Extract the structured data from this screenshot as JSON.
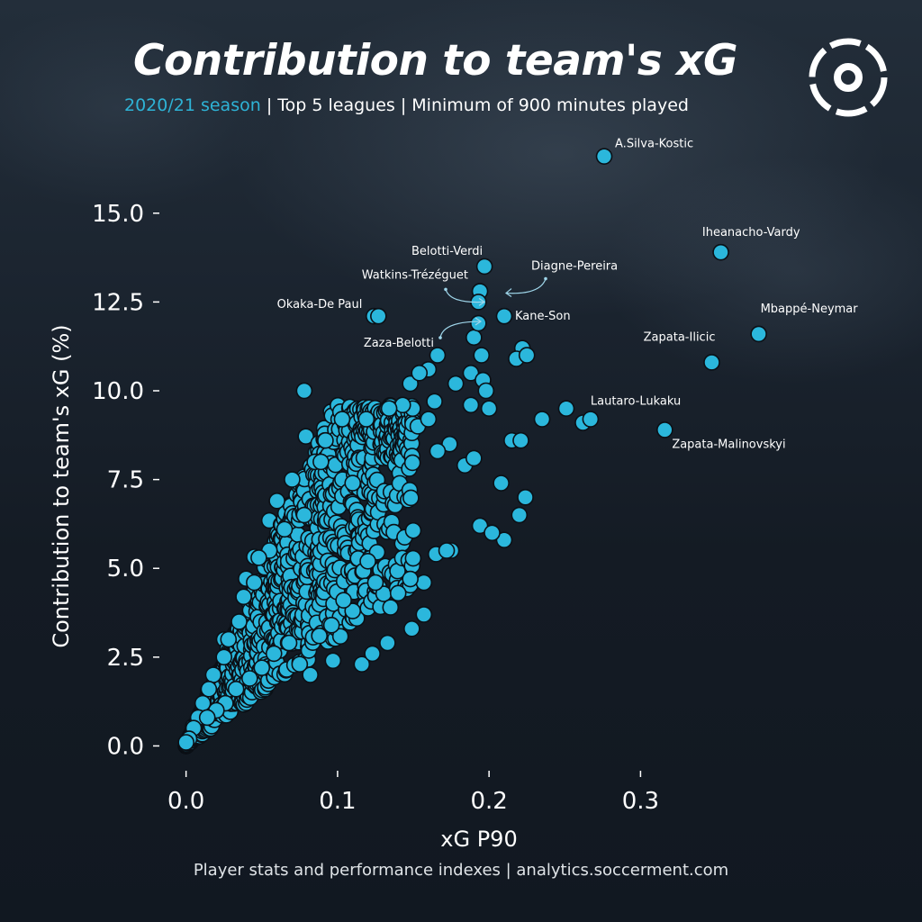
{
  "header": {
    "title": "Contribution to team's xG",
    "subtitle_season": "2020/21 season",
    "subtitle_rest": " | Top 5 leagues | Minimum of 900 minutes played"
  },
  "footer": {
    "text": "Player stats and performance indexes  |  analytics.soccerment.com"
  },
  "colors": {
    "point_fill": "#2bb7dc",
    "point_stroke": "#0b1016",
    "accent": "#2eb3d6",
    "background": "#141c26"
  },
  "chart_data": {
    "type": "scatter",
    "xlabel": "xG P90",
    "ylabel": "Contribution to team's xG (%)",
    "xlim": [
      -0.02,
      0.38
    ],
    "ylim": [
      -0.8,
      17.2
    ],
    "xticks": [
      0.0,
      0.1,
      0.2,
      0.3
    ],
    "xtick_labels": [
      "0.0",
      "0.1",
      "0.2",
      "0.3"
    ],
    "yticks": [
      0.0,
      2.5,
      5.0,
      7.5,
      10.0,
      12.5,
      15.0
    ],
    "ytick_labels": [
      "0.0",
      "2.5",
      "5.0",
      "7.5",
      "10.0",
      "12.5",
      "15.0"
    ],
    "grid": false,
    "labeled_points": [
      {
        "label": "A.Silva-Kostic",
        "x": 0.276,
        "y": 16.6
      },
      {
        "label": "Iheanacho-Vardy",
        "x": 0.353,
        "y": 13.9
      },
      {
        "label": "Belotti-Verdi",
        "x": 0.197,
        "y": 13.5
      },
      {
        "label": "Diagne-Pereira",
        "x": 0.194,
        "y": 12.8
      },
      {
        "label": "Watkins-Trézéguet",
        "x": 0.193,
        "y": 12.5
      },
      {
        "label": "Okaka-De Paul",
        "x": 0.127,
        "y": 12.1
      },
      {
        "label": "Kane-Son",
        "x": 0.21,
        "y": 12.1
      },
      {
        "label": "Zaza-Belotti",
        "x": 0.193,
        "y": 11.9
      },
      {
        "label": "Mbappé-Neymar",
        "x": 0.378,
        "y": 11.6
      },
      {
        "label": "Zapata-Ilicic",
        "x": 0.347,
        "y": 10.8
      },
      {
        "label": "Lautaro-Lukaku",
        "x": 0.267,
        "y": 9.2
      },
      {
        "label": "Zapata-Malinovskyi",
        "x": 0.316,
        "y": 8.9
      }
    ],
    "other_points": [
      {
        "x": 0.124,
        "y": 12.1
      },
      {
        "x": 0.078,
        "y": 10.0
      },
      {
        "x": 0.195,
        "y": 11.0
      },
      {
        "x": 0.19,
        "y": 11.5
      },
      {
        "x": 0.188,
        "y": 10.5
      },
      {
        "x": 0.222,
        "y": 11.2
      },
      {
        "x": 0.218,
        "y": 10.9
      },
      {
        "x": 0.225,
        "y": 11.0
      },
      {
        "x": 0.196,
        "y": 10.3
      },
      {
        "x": 0.198,
        "y": 10.0
      },
      {
        "x": 0.166,
        "y": 11.0
      },
      {
        "x": 0.16,
        "y": 10.6
      },
      {
        "x": 0.148,
        "y": 10.2
      },
      {
        "x": 0.154,
        "y": 10.5
      },
      {
        "x": 0.178,
        "y": 10.2
      },
      {
        "x": 0.143,
        "y": 9.6
      },
      {
        "x": 0.134,
        "y": 9.5
      },
      {
        "x": 0.164,
        "y": 9.7
      },
      {
        "x": 0.188,
        "y": 9.6
      },
      {
        "x": 0.2,
        "y": 9.5
      },
      {
        "x": 0.235,
        "y": 9.2
      },
      {
        "x": 0.251,
        "y": 9.5
      },
      {
        "x": 0.262,
        "y": 9.1
      },
      {
        "x": 0.119,
        "y": 9.2
      },
      {
        "x": 0.103,
        "y": 9.2
      },
      {
        "x": 0.153,
        "y": 9.0
      },
      {
        "x": 0.16,
        "y": 9.2
      },
      {
        "x": 0.215,
        "y": 8.6
      },
      {
        "x": 0.221,
        "y": 8.6
      },
      {
        "x": 0.174,
        "y": 8.5
      },
      {
        "x": 0.166,
        "y": 8.3
      },
      {
        "x": 0.184,
        "y": 7.9
      },
      {
        "x": 0.19,
        "y": 8.1
      },
      {
        "x": 0.208,
        "y": 7.4
      },
      {
        "x": 0.224,
        "y": 7.0
      },
      {
        "x": 0.22,
        "y": 6.5
      },
      {
        "x": 0.194,
        "y": 6.2
      },
      {
        "x": 0.21,
        "y": 5.8
      },
      {
        "x": 0.202,
        "y": 6.0
      },
      {
        "x": 0.175,
        "y": 5.5
      },
      {
        "x": 0.165,
        "y": 5.4
      },
      {
        "x": 0.172,
        "y": 5.5
      },
      {
        "x": 0.157,
        "y": 4.6
      },
      {
        "x": 0.14,
        "y": 4.3
      },
      {
        "x": 0.148,
        "y": 4.7
      },
      {
        "x": 0.157,
        "y": 3.7
      },
      {
        "x": 0.149,
        "y": 3.3
      },
      {
        "x": 0.133,
        "y": 2.9
      },
      {
        "x": 0.116,
        "y": 2.3
      },
      {
        "x": 0.123,
        "y": 2.6
      },
      {
        "x": 0.082,
        "y": 2.0
      },
      {
        "x": 0.075,
        "y": 2.3
      },
      {
        "x": 0.097,
        "y": 2.4
      },
      {
        "x": 0.085,
        "y": 8.0
      },
      {
        "x": 0.092,
        "y": 8.6
      },
      {
        "x": 0.089,
        "y": 8.0
      },
      {
        "x": 0.11,
        "y": 7.4
      },
      {
        "x": 0.07,
        "y": 7.5
      },
      {
        "x": 0.06,
        "y": 6.9
      },
      {
        "x": 0.078,
        "y": 6.5
      },
      {
        "x": 0.065,
        "y": 6.1
      },
      {
        "x": 0.055,
        "y": 5.5
      },
      {
        "x": 0.048,
        "y": 5.3
      },
      {
        "x": 0.045,
        "y": 4.6
      },
      {
        "x": 0.038,
        "y": 4.2
      },
      {
        "x": 0.035,
        "y": 3.5
      },
      {
        "x": 0.028,
        "y": 3.0
      },
      {
        "x": 0.025,
        "y": 2.5
      },
      {
        "x": 0.018,
        "y": 2.0
      },
      {
        "x": 0.015,
        "y": 1.6
      },
      {
        "x": 0.011,
        "y": 1.2
      },
      {
        "x": 0.008,
        "y": 0.8
      },
      {
        "x": 0.005,
        "y": 0.5
      },
      {
        "x": 0.002,
        "y": 0.2
      },
      {
        "x": 0.0,
        "y": 0.1
      },
      {
        "x": 0.12,
        "y": 5.2
      },
      {
        "x": 0.125,
        "y": 4.6
      },
      {
        "x": 0.135,
        "y": 3.9
      },
      {
        "x": 0.11,
        "y": 3.8
      },
      {
        "x": 0.104,
        "y": 4.1
      },
      {
        "x": 0.096,
        "y": 3.4
      },
      {
        "x": 0.088,
        "y": 3.1
      },
      {
        "x": 0.068,
        "y": 2.9
      },
      {
        "x": 0.058,
        "y": 2.6
      },
      {
        "x": 0.05,
        "y": 2.2
      },
      {
        "x": 0.042,
        "y": 1.9
      },
      {
        "x": 0.033,
        "y": 1.6
      },
      {
        "x": 0.026,
        "y": 1.2
      },
      {
        "x": 0.02,
        "y": 1.0
      },
      {
        "x": 0.014,
        "y": 0.8
      }
    ]
  }
}
